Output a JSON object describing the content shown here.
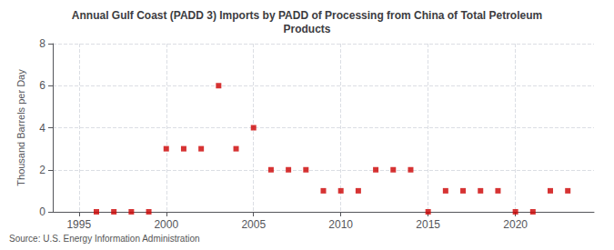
{
  "chart_data": {
    "type": "scatter",
    "title": "Annual Gulf Coast (PADD 3) Imports by PADD of Processing from China of Total Petroleum\nProducts",
    "ylabel": "Thousand Barrels per Day",
    "source": "Source: U.S. Energy Information Administration",
    "x": [
      1996,
      1997,
      1998,
      1999,
      2000,
      2001,
      2002,
      2003,
      2004,
      2005,
      2006,
      2007,
      2008,
      2009,
      2010,
      2011,
      2012,
      2013,
      2014,
      2015,
      2016,
      2017,
      2018,
      2019,
      2020,
      2021,
      2022,
      2023
    ],
    "values": [
      0,
      0,
      0,
      0,
      3,
      3,
      3,
      6,
      3,
      4,
      2,
      2,
      2,
      1,
      1,
      1,
      2,
      2,
      2,
      0,
      1,
      1,
      1,
      1,
      0,
      0,
      1,
      1
    ],
    "color": "#cc0000",
    "marker": "square",
    "xlim": [
      1993.5,
      2024.5
    ],
    "ylim": [
      0,
      8
    ],
    "xticks": [
      1995,
      2000,
      2005,
      2010,
      2015,
      2020
    ],
    "yticks": [
      0,
      2,
      4,
      6,
      8
    ],
    "grid": true
  }
}
